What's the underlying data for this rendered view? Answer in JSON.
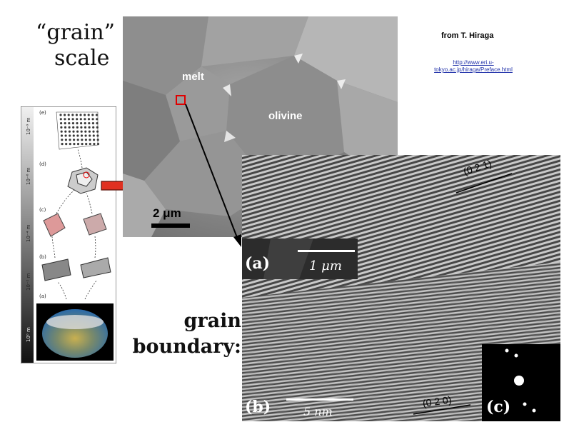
{
  "slide": {
    "title_line1": "“grain”",
    "title_line2": "scale",
    "credit": "from T. Hiraga",
    "link": "http://www.eri.u-tokyo.ac.jp/hiraga/Preface.html",
    "grain_boundary_line1": "grain",
    "grain_boundary_line2": "boundary:"
  },
  "tem_micrograph": {
    "label_melt": "melt",
    "label_olivine": "olivine",
    "scalebar_label": "2 μm"
  },
  "hrtem": {
    "label_a": "(a)",
    "label_b": "(b)",
    "label_c": "(c)",
    "inset_scale": "1 μm",
    "scale_5nm": "5 nm",
    "plane_021": "(0 2 1)",
    "plane_020": "(0 2 0)"
  },
  "scale_strip": {
    "scale_labels": [
      "10⁰ m",
      "10⁻² m",
      "10⁻⁴ m",
      "10⁻⁶ m",
      "10⁻⁹ m"
    ],
    "panel_labels": [
      "(e)",
      "(d)",
      "(c)",
      "(b)",
      "(a)"
    ]
  },
  "colors": {
    "arrow_red": "#e03020",
    "box_red": "#e00000",
    "link_blue": "#2233aa"
  }
}
